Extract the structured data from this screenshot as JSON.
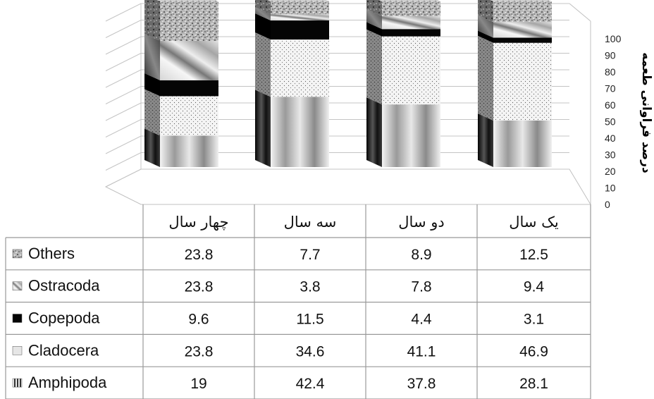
{
  "chart_data": {
    "type": "bar",
    "stacked": true,
    "three_d": true,
    "ylabel": "درصد فراوانی طعمه",
    "ylim": [
      0,
      100
    ],
    "yticks": [
      0,
      10,
      20,
      30,
      40,
      50,
      60,
      70,
      80,
      90,
      100
    ],
    "grid": true,
    "legend": "data-table-left",
    "categories": [
      "چهار سال",
      "سه سال",
      "دو سال",
      "یک سال"
    ],
    "series": [
      {
        "name": "Amphipoda",
        "values": [
          19,
          42.4,
          37.8,
          28.1
        ],
        "pattern": "vertical-gradient-stripes"
      },
      {
        "name": "Cladocera",
        "values": [
          23.8,
          34.6,
          41.1,
          46.9
        ],
        "pattern": "fine-dots"
      },
      {
        "name": "Copepoda",
        "values": [
          9.6,
          11.5,
          4.4,
          3.1
        ],
        "pattern": "solid-black"
      },
      {
        "name": "Ostracoda",
        "values": [
          23.8,
          3.8,
          7.8,
          9.4
        ],
        "pattern": "diagonal-gradient"
      },
      {
        "name": "Others",
        "values": [
          23.8,
          7.7,
          8.9,
          12.5
        ],
        "pattern": "speckled"
      }
    ],
    "table_row_order": [
      "Others",
      "Ostracoda",
      "Copepoda",
      "Cladocera",
      "Amphipoda"
    ]
  }
}
